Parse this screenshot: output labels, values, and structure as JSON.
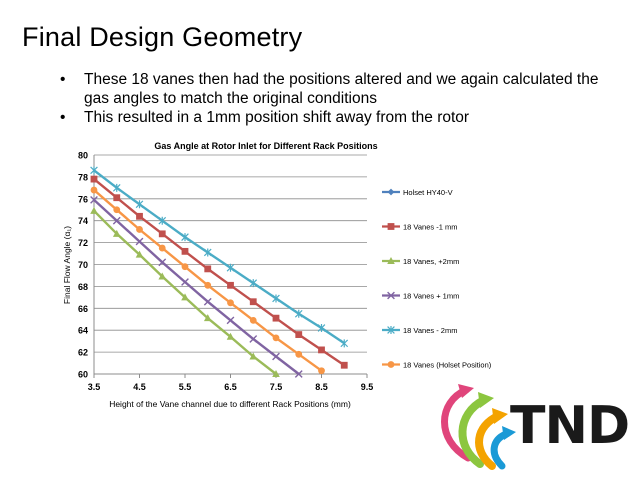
{
  "slide": {
    "title": "Final Design Geometry",
    "bullets": [
      "These 18 vanes then had the positions altered and we again calculated the gas angles to match the original conditions",
      "This resulted in a 1mm position shift away from the rotor"
    ],
    "bullet_glyph": "•"
  },
  "logo": {
    "text": "TND",
    "icon": "tnd-logo-icon",
    "colors": [
      "#e0457b",
      "#8cc63f",
      "#f4a300",
      "#1b9ad6"
    ]
  },
  "chart_data": {
    "type": "line",
    "title": "Gas Angle at Rotor Inlet for Different Rack Positions",
    "xlabel": "Height of the Vane channel due to different Rack Positions (mm)",
    "ylabel": "Final Flow Angle (α₁)",
    "xlim": [
      3.5,
      9.5
    ],
    "ylim": [
      60,
      80
    ],
    "xticks": [
      "3.5",
      "4.5",
      "5.5",
      "6.5",
      "7.5",
      "8.5",
      "9.5"
    ],
    "yticks": [
      "60",
      "62",
      "64",
      "66",
      "68",
      "70",
      "72",
      "74",
      "76",
      "78",
      "80"
    ],
    "grid": "horizontal",
    "legend_position": "right",
    "series": [
      {
        "name": "Holset HY40-V",
        "color": "#4f81bd",
        "marker": "diamond",
        "x": [],
        "y": []
      },
      {
        "name": "18 Vanes -1 mm",
        "color": "#c0504d",
        "marker": "square",
        "x": [
          3.5,
          4.0,
          4.5,
          5.0,
          5.5,
          6.0,
          6.5,
          7.0,
          7.5,
          8.0,
          8.5,
          9.0
        ],
        "y": [
          77.8,
          76.1,
          74.4,
          72.8,
          71.2,
          69.6,
          68.1,
          66.6,
          65.1,
          63.6,
          62.2,
          60.8
        ]
      },
      {
        "name": "18 Vanes, +2mm",
        "color": "#9bbb59",
        "marker": "triangle",
        "x": [
          3.5,
          4.0,
          4.5,
          5.0,
          5.5,
          6.0,
          6.5,
          7.0,
          7.5
        ],
        "y": [
          74.9,
          72.8,
          70.9,
          68.9,
          67.0,
          65.1,
          63.4,
          61.6,
          60.0
        ]
      },
      {
        "name": "18 Vanes + 1mm",
        "color": "#8064a2",
        "marker": "x",
        "x": [
          3.5,
          4.0,
          4.5,
          5.0,
          5.5,
          6.0,
          6.5,
          7.0,
          7.5,
          8.0
        ],
        "y": [
          75.9,
          74.0,
          72.1,
          70.2,
          68.4,
          66.6,
          64.9,
          63.2,
          61.6,
          60.0
        ]
      },
      {
        "name": "18 Vanes - 2mm",
        "color": "#4bacc6",
        "marker": "star",
        "x": [
          3.5,
          4.0,
          4.5,
          5.0,
          5.5,
          6.0,
          6.5,
          7.0,
          7.5,
          8.0,
          8.5,
          9.0
        ],
        "y": [
          78.6,
          77.0,
          75.5,
          74.0,
          72.5,
          71.1,
          69.7,
          68.3,
          66.9,
          65.5,
          64.2,
          62.8
        ]
      },
      {
        "name": "18 Vanes (Holset Position)",
        "color": "#f79646",
        "marker": "circle",
        "x": [
          3.5,
          4.0,
          4.5,
          5.0,
          5.5,
          6.0,
          6.5,
          7.0,
          7.5,
          8.0,
          8.5
        ],
        "y": [
          76.8,
          75.0,
          73.2,
          71.5,
          69.8,
          68.1,
          66.5,
          64.9,
          63.3,
          61.8,
          60.3
        ]
      }
    ]
  }
}
